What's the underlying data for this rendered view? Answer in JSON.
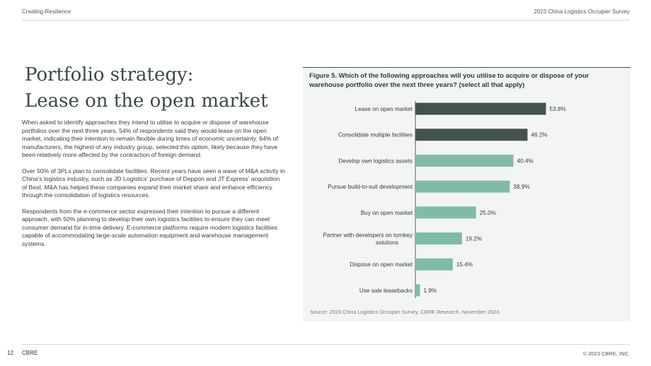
{
  "header": {
    "left": "Creating Resilience",
    "right": "2023 China Logistics Occupier Survey"
  },
  "title": {
    "line1": "Portfolio strategy:",
    "line2": "Lease on the open market"
  },
  "body": {
    "p1": "When asked to identify approaches they intend to utilise to acquire or dispose of warehouse portfolios over the next three years, 54% of respondents said they would lease on the open market, indicating their intention to remain flexible during times of economic uncertainty. 64% of manufacturers, the highest of any industry group, selected this option, likely because they have been relatively more affected by the contraction of foreign demand.",
    "p2": "Over 50% of 3PLs plan to consolidate facilities. Recent years have seen a wave of M&A activity in China’s logistics industry, such as JD Logistics’ purchase of Deppon and JT Express’ acquisition of Best. M&A has helped these companies expand their market share and enhance efficiency through the consolidation of logistics resources.",
    "p3": "Respondents from the e-commerce sector expressed their intention to pursue a different approach, with 50% planning to develop their own logistics facilities to ensure they can meet consumer demand for in-time delivery. E-commerce platforms require modern logistics facilities capable of accommodating large-scale automation equipment and warehouse management systems."
  },
  "figure": {
    "title": "Figure 5. Which of the following approaches will you utilise to acquire or dispose of your warehouse portfolio over the next three years? (select all that apply)",
    "source": "Source: 2023 China Logistics Occupier Survey, CBRE Research, November 2023."
  },
  "chart_data": {
    "type": "bar",
    "orientation": "horizontal",
    "title": "Figure 5. Which of the following approaches will you utilise to acquire or dispose of your warehouse portfolio over the next three years? (select all that apply)",
    "categories": [
      [
        "Lease on open market"
      ],
      [
        "Consolidate multiple facilities"
      ],
      [
        "Develop own logistics assets"
      ],
      [
        "Pursue build-to-suit development"
      ],
      [
        "Buy on open market"
      ],
      [
        "Partner with developers on turnkey",
        "solutions"
      ],
      [
        "Dispose on open market"
      ],
      [
        "Use sale leasebacks"
      ]
    ],
    "values": [
      53.8,
      46.2,
      40.4,
      38.9,
      25.0,
      19.2,
      15.4,
      1.9
    ],
    "value_labels": [
      "53.8%",
      "46.2%",
      "40.4%",
      "38.9%",
      "25.0%",
      "19.2%",
      "15.4%",
      "1.9%"
    ],
    "xlim": [
      0,
      100
    ],
    "grid": false,
    "colors": {
      "highlight": "#435350",
      "default": "#80bbaa",
      "axis": "#5a5a5a"
    },
    "highlight_count": 2
  },
  "footer": {
    "page": "12",
    "brand": "CBRE",
    "copyright": "© 2023 CBRE, INC."
  }
}
